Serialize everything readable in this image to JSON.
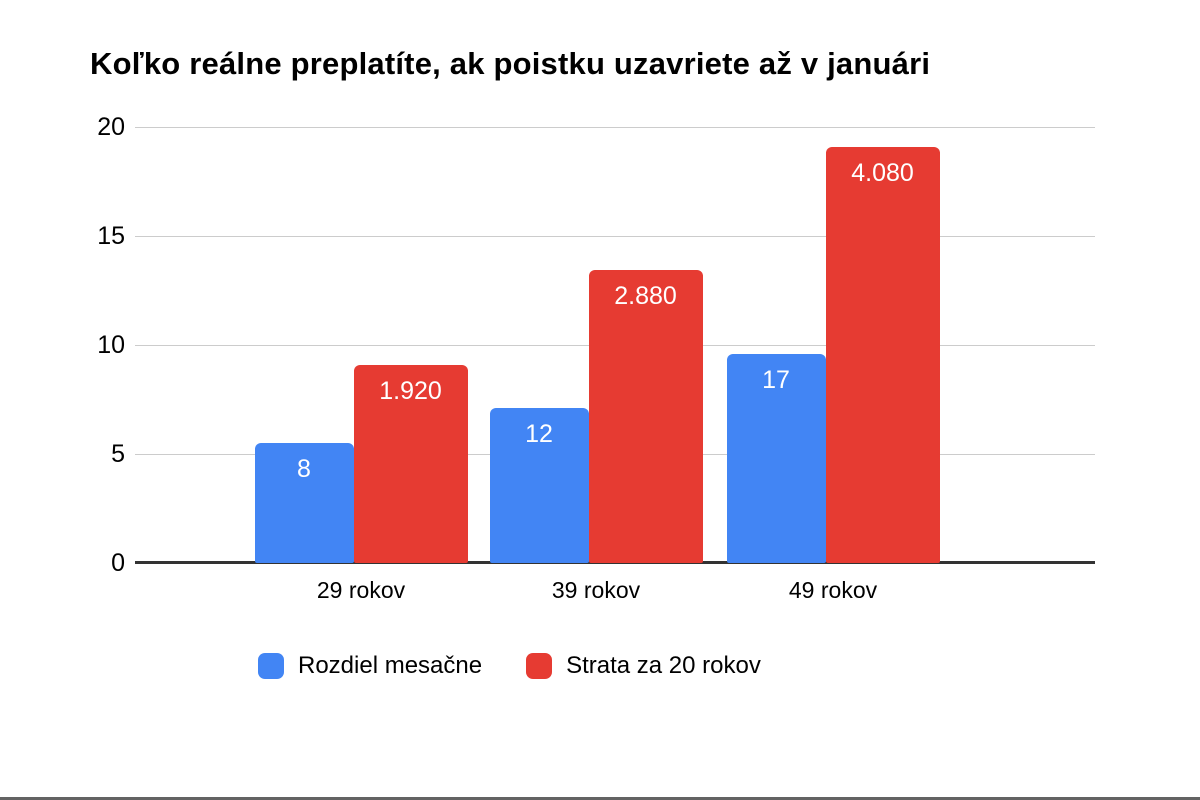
{
  "chart_data": {
    "type": "bar",
    "title": "Koľko reálne preplatíte, ak poistku uzavriete až v januári",
    "categories": [
      "29 rokov",
      "39 rokov",
      "49 rokov"
    ],
    "series": [
      {
        "name": "Rozdiel mesačne",
        "color": "#4285F4",
        "values": [
          8,
          12,
          17
        ],
        "data_labels": [
          "8",
          "12",
          "17"
        ],
        "bar_heights_axis_units": [
          5.5,
          7.1,
          9.6
        ]
      },
      {
        "name": "Strata za 20 rokov",
        "color": "#E63B32",
        "values": [
          1920,
          2880,
          4080
        ],
        "data_labels": [
          "1.920",
          "2.880",
          "4.080"
        ],
        "bar_heights_axis_units": [
          9.1,
          13.45,
          19.1
        ]
      }
    ],
    "data_label_color": "#FFFFFF",
    "y_ticks": [
      0,
      5,
      10,
      15,
      20
    ],
    "ylim": [
      0,
      20
    ],
    "xlabel": "",
    "ylabel": "",
    "grid": true,
    "gridline_color": "#CCCCCC",
    "baseline_color": "#333333",
    "legend_position": "bottom"
  }
}
